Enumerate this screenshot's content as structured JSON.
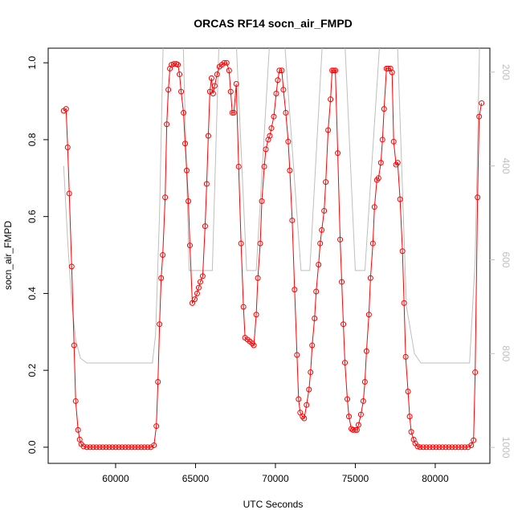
{
  "chart_data": {
    "type": "line",
    "title": "ORCAS RF14 socn_air_FMPD",
    "xlabel": "UTC Seconds",
    "ylabel": "socn_air_FMPD",
    "xlim": [
      55780,
      83420
    ],
    "xticks": [
      60000,
      65000,
      70000,
      75000,
      80000
    ],
    "ylim": [
      -0.042,
      1.038
    ],
    "yticks": [
      {
        "value": 0,
        "label": "0.0"
      },
      0.2,
      0.4,
      0.6,
      0.8,
      {
        "value": 1,
        "label": "1.0"
      }
    ],
    "y2lim": [
      1034,
      149
    ],
    "y2ticks": [
      200,
      400,
      600,
      800,
      1000
    ],
    "series": [
      {
        "color": "#ff0000",
        "markers": true,
        "x": [
          56750,
          56900,
          57000,
          57100,
          57250,
          57400,
          57500,
          57650,
          57750,
          57850,
          58000,
          58200,
          58400,
          58600,
          58800,
          59000,
          59200,
          59400,
          59600,
          59800,
          60000,
          60200,
          60400,
          60600,
          60800,
          61000,
          61200,
          61400,
          61600,
          61800,
          62000,
          62200,
          62400,
          62550,
          62650,
          62750,
          62850,
          62950,
          63100,
          63200,
          63300,
          63400,
          63500,
          63650,
          63800,
          63900,
          64000,
          64100,
          64250,
          64350,
          64450,
          64550,
          64650,
          64800,
          64950,
          65100,
          65200,
          65300,
          65450,
          65600,
          65700,
          65800,
          65900,
          66000,
          66100,
          66200,
          66350,
          66500,
          66650,
          66800,
          66950,
          67100,
          67200,
          67300,
          67400,
          67550,
          67700,
          67850,
          68000,
          68100,
          68250,
          68400,
          68550,
          68650,
          68800,
          68900,
          69050,
          69150,
          69300,
          69400,
          69550,
          69650,
          69750,
          69900,
          70050,
          70150,
          70250,
          70400,
          70500,
          70650,
          70800,
          70900,
          71050,
          71200,
          71350,
          71450,
          71550,
          71700,
          71800,
          71950,
          72100,
          72200,
          72300,
          72450,
          72550,
          72700,
          72800,
          72900,
          73050,
          73150,
          73300,
          73450,
          73550,
          73650,
          73750,
          73900,
          74050,
          74150,
          74250,
          74350,
          74500,
          74600,
          74750,
          74850,
          75000,
          75100,
          75200,
          75350,
          75500,
          75600,
          75700,
          75850,
          75950,
          76100,
          76200,
          76350,
          76450,
          76600,
          76700,
          76800,
          76950,
          77050,
          77200,
          77300,
          77400,
          77550,
          77650,
          77800,
          77950,
          78050,
          78150,
          78300,
          78400,
          78500,
          78650,
          78750,
          78900,
          79050,
          79250,
          79450,
          79650,
          79850,
          80050,
          80250,
          80450,
          80650,
          80850,
          81050,
          81250,
          81450,
          81650,
          81850,
          82050,
          82250,
          82400,
          82500,
          82650,
          82750,
          82900
        ],
        "values": [
          0.875,
          0.88,
          0.78,
          0.66,
          0.47,
          0.265,
          0.12,
          0.045,
          0.02,
          0.008,
          0.002,
          0,
          0,
          0,
          0,
          0,
          0,
          0,
          0,
          0,
          0,
          0,
          0,
          0,
          0,
          0,
          0,
          0,
          0,
          0,
          0,
          0,
          0.005,
          0.055,
          0.17,
          0.32,
          0.44,
          0.5,
          0.65,
          0.84,
          0.93,
          0.985,
          0.995,
          0.997,
          0.997,
          0.995,
          0.97,
          0.925,
          0.87,
          0.79,
          0.72,
          0.64,
          0.525,
          0.375,
          0.385,
          0.4,
          0.415,
          0.43,
          0.445,
          0.575,
          0.685,
          0.81,
          0.925,
          0.96,
          0.92,
          0.94,
          0.97,
          0.99,
          0.995,
          1.0,
          1.0,
          0.98,
          0.925,
          0.87,
          0.87,
          0.945,
          0.73,
          0.53,
          0.365,
          0.285,
          0.28,
          0.275,
          0.27,
          0.265,
          0.345,
          0.44,
          0.53,
          0.64,
          0.73,
          0.775,
          0.8,
          0.81,
          0.83,
          0.86,
          0.92,
          0.955,
          0.98,
          0.98,
          0.93,
          0.87,
          0.795,
          0.72,
          0.59,
          0.41,
          0.24,
          0.125,
          0.09,
          0.08,
          0.075,
          0.11,
          0.15,
          0.195,
          0.265,
          0.335,
          0.405,
          0.475,
          0.53,
          0.565,
          0.615,
          0.69,
          0.825,
          0.905,
          0.98,
          0.98,
          0.98,
          0.765,
          0.54,
          0.43,
          0.32,
          0.22,
          0.125,
          0.08,
          0.048,
          0.045,
          0.045,
          0.045,
          0.058,
          0.085,
          0.12,
          0.17,
          0.25,
          0.345,
          0.44,
          0.53,
          0.625,
          0.695,
          0.7,
          0.74,
          0.8,
          0.88,
          0.985,
          0.985,
          0.985,
          0.975,
          0.795,
          0.735,
          0.74,
          0.645,
          0.51,
          0.375,
          0.235,
          0.145,
          0.08,
          0.04,
          0.02,
          0.01,
          0.002,
          0,
          0,
          0,
          0,
          0,
          0,
          0,
          0,
          0,
          0,
          0,
          0,
          0,
          0,
          0,
          0,
          0.005,
          0.018,
          0.195,
          0.65,
          0.86,
          0.895
        ]
      },
      {
        "color": "#bebebe",
        "axis": "y2",
        "markers": false,
        "x": [
          56750,
          57000,
          57250,
          57500,
          57800,
          58200,
          62300,
          62500,
          62750,
          63000,
          64200,
          64600,
          65000,
          66050,
          66500,
          67500,
          68200,
          68800,
          69700,
          70500,
          71600,
          72150,
          73000,
          74300,
          75000,
          75600,
          76600,
          77600,
          78200,
          78700,
          79100,
          82150,
          82500,
          82800
        ],
        "values": [
          400,
          560,
          690,
          770,
          810,
          820,
          820,
          760,
          500,
          100,
          100,
          623,
          623,
          623,
          100,
          100,
          623,
          623,
          100,
          100,
          623,
          623,
          100,
          100,
          623,
          623,
          100,
          100,
          700,
          800,
          820,
          820,
          600,
          100
        ]
      }
    ]
  }
}
